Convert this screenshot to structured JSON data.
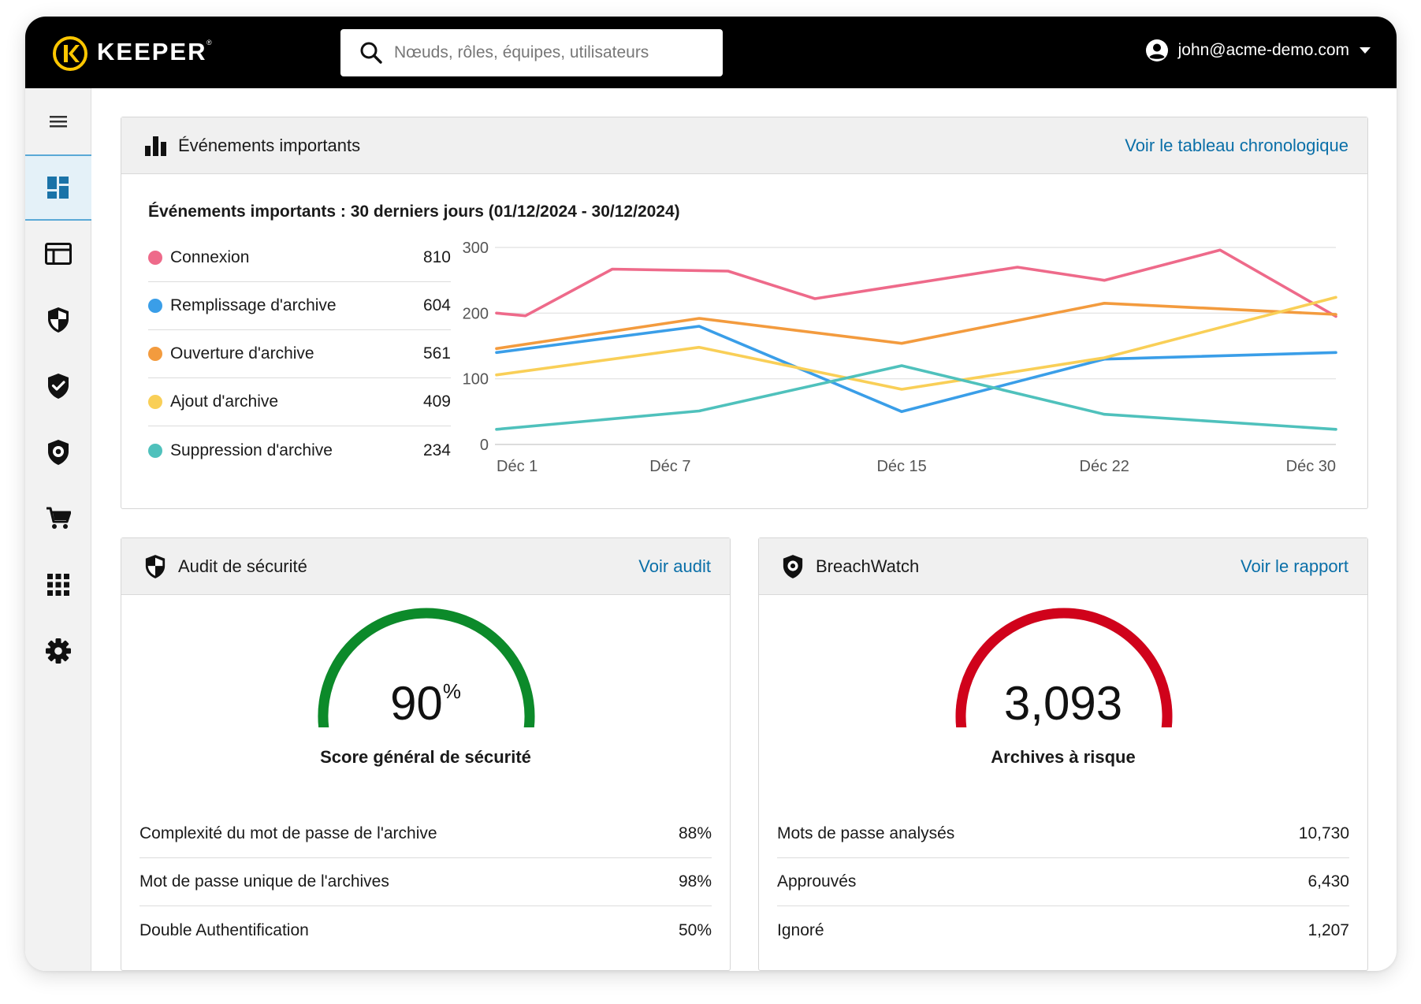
{
  "app": {
    "brand": "KEEPER",
    "brand_mark": "®",
    "logo_color": "#FFC700"
  },
  "search": {
    "placeholder": "Nœuds, rôles, équipes, utilisateurs",
    "icon": "search-icon"
  },
  "user": {
    "email": "john@acme-demo.com",
    "icon": "account-circle-icon"
  },
  "sidebar": {
    "items": [
      {
        "name": "menu",
        "icon": "hamburger-menu-icon"
      },
      {
        "name": "dashboard",
        "icon": "dashboard-icon",
        "active": true
      },
      {
        "name": "admin",
        "icon": "browser-window-icon"
      },
      {
        "name": "security-audit",
        "icon": "shield-half-icon"
      },
      {
        "name": "compliance",
        "icon": "shield-check-icon"
      },
      {
        "name": "breachwatch",
        "icon": "shield-eye-icon"
      },
      {
        "name": "marketplace",
        "icon": "cart-icon"
      },
      {
        "name": "apps",
        "icon": "grid-icon"
      },
      {
        "name": "settings",
        "icon": "gear-icon"
      }
    ]
  },
  "events_card": {
    "title": "Événements importants",
    "link": "Voir le tableau chronologique",
    "subtitle": "Événements importants : 30 derniers jours (01/12/2024 - 30/12/2024)",
    "legend": [
      {
        "label": "Connexion",
        "value": "810",
        "color": "#EE6A8A"
      },
      {
        "label": "Remplissage d'archive",
        "value": "604",
        "color": "#3A9EE8"
      },
      {
        "label": "Ouverture d'archive",
        "value": "561",
        "color": "#F39B3E"
      },
      {
        "label": "Ajout d'archive",
        "value": "409",
        "color": "#F9CF57"
      },
      {
        "label": "Suppression d'archive",
        "value": "234",
        "color": "#4FC1BC"
      }
    ]
  },
  "chart_data": {
    "type": "line",
    "x": [
      1,
      2,
      3,
      4,
      5,
      6,
      7,
      8,
      9,
      10,
      11,
      12,
      13,
      14,
      15,
      16,
      17,
      18,
      19,
      20,
      21,
      22,
      23,
      24,
      25,
      26,
      27,
      28,
      29,
      30
    ],
    "x_tick_positions": [
      1,
      7,
      15,
      22,
      30
    ],
    "x_tick_labels": [
      "Déc 1",
      "Déc 7",
      "Déc 15",
      "Déc 22",
      "Déc 30"
    ],
    "ylim": [
      0,
      300
    ],
    "y_ticks": [
      0,
      100,
      200,
      300
    ],
    "grid": true,
    "series": [
      {
        "name": "Connexion",
        "color": "#EE6A8A",
        "points": [
          [
            1,
            200
          ],
          [
            2,
            196
          ],
          [
            5,
            267
          ],
          [
            9,
            264
          ],
          [
            12,
            222
          ],
          [
            19,
            270
          ],
          [
            22,
            250
          ],
          [
            26,
            296
          ],
          [
            30,
            195
          ]
        ]
      },
      {
        "name": "Remplissage d'archive",
        "color": "#3A9EE8",
        "points": [
          [
            1,
            140
          ],
          [
            8,
            180
          ],
          [
            15,
            50
          ],
          [
            22,
            130
          ],
          [
            30,
            140
          ]
        ]
      },
      {
        "name": "Ouverture d'archive",
        "color": "#F39B3E",
        "points": [
          [
            1,
            146
          ],
          [
            8,
            192
          ],
          [
            15,
            154
          ],
          [
            22,
            215
          ],
          [
            30,
            198
          ]
        ]
      },
      {
        "name": "Ajout d'archive",
        "color": "#F9CF57",
        "points": [
          [
            1,
            106
          ],
          [
            8,
            148
          ],
          [
            15,
            84
          ],
          [
            22,
            132
          ],
          [
            30,
            224
          ]
        ]
      },
      {
        "name": "Suppression d'archive",
        "color": "#4FC1BC",
        "points": [
          [
            1,
            23
          ],
          [
            8,
            51
          ],
          [
            15,
            120
          ],
          [
            22,
            46
          ],
          [
            30,
            23
          ]
        ]
      }
    ]
  },
  "audit_card": {
    "title": "Audit de sécurité",
    "link": "Voir audit",
    "score_value": "90",
    "score_unit": "%",
    "score_fraction": 0.9,
    "score_color": "#0C8A2A",
    "track_color": "#CCCCCC",
    "caption": "Score général de sécurité",
    "stats": [
      {
        "label": "Complexité du mot de passe de l'archive",
        "value": "88%"
      },
      {
        "label": "Mot de passe unique de l'archives",
        "value": "98%"
      },
      {
        "label": "Double Authentification",
        "value": "50%"
      }
    ]
  },
  "breach_card": {
    "title": "BreachWatch",
    "link": "Voir le rapport",
    "value": "3,093",
    "gauge_fraction": 1.0,
    "gauge_color": "#D0021B",
    "caption": "Archives à risque",
    "stats": [
      {
        "label": "Mots de passe analysés",
        "value": "10,730"
      },
      {
        "label": "Approuvés",
        "value": "6,430"
      },
      {
        "label": "Ignoré",
        "value": "1,207"
      }
    ]
  }
}
